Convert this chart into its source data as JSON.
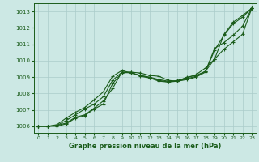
{
  "xlabel": "Graphe pression niveau de la mer (hPa)",
  "xlim": [
    -0.5,
    23.5
  ],
  "ylim": [
    1005.6,
    1013.5
  ],
  "yticks": [
    1006,
    1007,
    1008,
    1009,
    1010,
    1011,
    1012,
    1013
  ],
  "xticks": [
    0,
    1,
    2,
    3,
    4,
    5,
    6,
    7,
    8,
    9,
    10,
    11,
    12,
    13,
    14,
    15,
    16,
    17,
    18,
    19,
    20,
    21,
    22,
    23
  ],
  "bg_color": "#cce8e4",
  "grid_color": "#aaccca",
  "line_color": "#1a5c1a",
  "lines": [
    [
      1006.0,
      1006.0,
      1006.0,
      1006.15,
      1006.5,
      1006.65,
      1007.05,
      1007.35,
      1008.6,
      1009.25,
      1009.3,
      1009.25,
      1009.1,
      1009.05,
      1008.8,
      1008.75,
      1009.0,
      1009.1,
      1009.35,
      1010.1,
      1011.6,
      1012.35,
      1012.75,
      1013.2
    ],
    [
      1006.0,
      1006.0,
      1006.05,
      1006.2,
      1006.55,
      1006.7,
      1007.1,
      1007.55,
      1008.3,
      1009.3,
      1009.3,
      1009.05,
      1008.95,
      1008.75,
      1008.7,
      1008.75,
      1008.85,
      1009.0,
      1009.3,
      1010.65,
      1011.55,
      1012.25,
      1012.65,
      1013.2
    ],
    [
      1006.0,
      1006.0,
      1006.05,
      1006.35,
      1006.7,
      1007.05,
      1007.35,
      1007.8,
      1008.8,
      1009.3,
      1009.25,
      1009.1,
      1009.0,
      1008.85,
      1008.75,
      1008.75,
      1008.9,
      1009.05,
      1009.35,
      1010.75,
      1011.1,
      1011.55,
      1012.1,
      1013.2
    ],
    [
      1006.0,
      1006.0,
      1006.1,
      1006.5,
      1006.85,
      1007.15,
      1007.6,
      1008.1,
      1009.05,
      1009.4,
      1009.25,
      1009.1,
      1008.95,
      1008.8,
      1008.7,
      1008.8,
      1008.95,
      1009.15,
      1009.55,
      1010.1,
      1010.7,
      1011.15,
      1011.6,
      1013.2
    ]
  ]
}
